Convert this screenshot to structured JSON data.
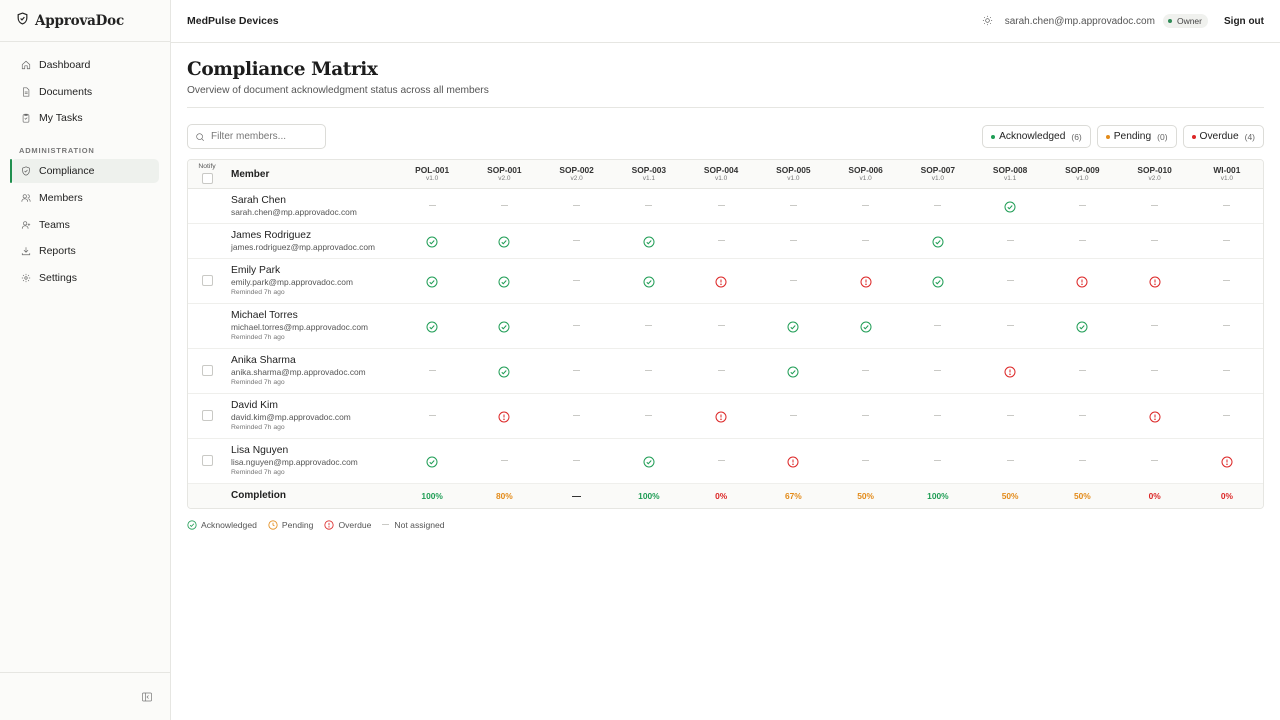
{
  "sidebar": {
    "brand": "ApprovaDoc",
    "nav": [
      {
        "label": "Dashboard",
        "icon": "home-icon"
      },
      {
        "label": "Documents",
        "icon": "document-icon"
      },
      {
        "label": "My Tasks",
        "icon": "clipboard-icon"
      }
    ],
    "admin_label": "ADMINISTRATION",
    "admin_nav": [
      {
        "label": "Compliance",
        "icon": "shield-check-icon",
        "active": true
      },
      {
        "label": "Members",
        "icon": "users-icon"
      },
      {
        "label": "Teams",
        "icon": "team-icon"
      },
      {
        "label": "Reports",
        "icon": "download-icon"
      },
      {
        "label": "Settings",
        "icon": "gear-icon"
      }
    ]
  },
  "header": {
    "org": "MedPulse Devices",
    "user_email": "sarah.chen@mp.approvadoc.com",
    "role": "Owner",
    "signout": "Sign out"
  },
  "page": {
    "title": "Compliance Matrix",
    "subtitle": "Overview of document acknowledgment status across all members"
  },
  "search": {
    "placeholder": "Filter members...",
    "value": ""
  },
  "filters": [
    {
      "label": "Acknowledged",
      "count": "(6)",
      "color": "#1f9d55"
    },
    {
      "label": "Pending",
      "count": "(0)",
      "color": "#e38b1a"
    },
    {
      "label": "Overdue",
      "count": "(4)",
      "color": "#dc2626"
    }
  ],
  "table": {
    "notify_header": "Notify",
    "member_header": "Member",
    "documents": [
      {
        "id": "POL-001",
        "version": "v1.0"
      },
      {
        "id": "SOP-001",
        "version": "v2.0"
      },
      {
        "id": "SOP-002",
        "version": "v2.0"
      },
      {
        "id": "SOP-003",
        "version": "v1.1"
      },
      {
        "id": "SOP-004",
        "version": "v1.0"
      },
      {
        "id": "SOP-005",
        "version": "v1.0"
      },
      {
        "id": "SOP-006",
        "version": "v1.0"
      },
      {
        "id": "SOP-007",
        "version": "v1.0"
      },
      {
        "id": "SOP-008",
        "version": "v1.1"
      },
      {
        "id": "SOP-009",
        "version": "v1.0"
      },
      {
        "id": "SOP-010",
        "version": "v2.0"
      },
      {
        "id": "WI-001",
        "version": "v1.0"
      }
    ],
    "members": [
      {
        "name": "Sarah Chen",
        "email": "sarah.chen@mp.approvadoc.com",
        "reminded": "",
        "notify_checkbox": false,
        "statuses": [
          "na",
          "na",
          "na",
          "na",
          "na",
          "na",
          "na",
          "na",
          "ack",
          "na",
          "na",
          "na"
        ]
      },
      {
        "name": "James Rodriguez",
        "email": "james.rodriguez@mp.approvadoc.com",
        "reminded": "",
        "notify_checkbox": false,
        "statuses": [
          "ack",
          "ack",
          "na",
          "ack",
          "na",
          "na",
          "na",
          "ack",
          "na",
          "na",
          "na",
          "na"
        ]
      },
      {
        "name": "Emily Park",
        "email": "emily.park@mp.approvadoc.com",
        "reminded": "Reminded 7h ago",
        "notify_checkbox": true,
        "statuses": [
          "ack",
          "ack",
          "na",
          "ack",
          "overdue",
          "na",
          "overdue",
          "ack",
          "na",
          "overdue",
          "overdue",
          "na"
        ]
      },
      {
        "name": "Michael Torres",
        "email": "michael.torres@mp.approvadoc.com",
        "reminded": "Reminded 7h ago",
        "notify_checkbox": false,
        "statuses": [
          "ack",
          "ack",
          "na",
          "na",
          "na",
          "ack",
          "ack",
          "na",
          "na",
          "ack",
          "na",
          "na"
        ]
      },
      {
        "name": "Anika Sharma",
        "email": "anika.sharma@mp.approvadoc.com",
        "reminded": "Reminded 7h ago",
        "notify_checkbox": true,
        "statuses": [
          "na",
          "ack",
          "na",
          "na",
          "na",
          "ack",
          "na",
          "na",
          "overdue",
          "na",
          "na",
          "na"
        ]
      },
      {
        "name": "David Kim",
        "email": "david.kim@mp.approvadoc.com",
        "reminded": "Reminded 7h ago",
        "notify_checkbox": true,
        "statuses": [
          "na",
          "overdue",
          "na",
          "na",
          "overdue",
          "na",
          "na",
          "na",
          "na",
          "na",
          "overdue",
          "na"
        ]
      },
      {
        "name": "Lisa Nguyen",
        "email": "lisa.nguyen@mp.approvadoc.com",
        "reminded": "Reminded 7h ago",
        "notify_checkbox": true,
        "statuses": [
          "ack",
          "na",
          "na",
          "ack",
          "na",
          "overdue",
          "na",
          "na",
          "na",
          "na",
          "na",
          "overdue"
        ]
      }
    ],
    "completion_label": "Completion",
    "completion": [
      {
        "value": "100%",
        "color": "#1f9d55"
      },
      {
        "value": "80%",
        "color": "#e38b1a"
      },
      {
        "value": "",
        "color": "#333333"
      },
      {
        "value": "100%",
        "color": "#1f9d55"
      },
      {
        "value": "0%",
        "color": "#dc2626"
      },
      {
        "value": "67%",
        "color": "#e38b1a"
      },
      {
        "value": "50%",
        "color": "#e38b1a"
      },
      {
        "value": "100%",
        "color": "#1f9d55"
      },
      {
        "value": "50%",
        "color": "#e38b1a"
      },
      {
        "value": "50%",
        "color": "#e38b1a"
      },
      {
        "value": "0%",
        "color": "#dc2626"
      },
      {
        "value": "0%",
        "color": "#dc2626"
      }
    ]
  },
  "legend": [
    {
      "label": "Acknowledged",
      "icon": "check-circle-icon"
    },
    {
      "label": "Pending",
      "icon": "clock-icon"
    },
    {
      "label": "Overdue",
      "icon": "alert-circle-icon"
    },
    {
      "label": "Not assigned",
      "icon": "dash-icon"
    }
  ],
  "colors": {
    "ack": "#1f9d55",
    "pending": "#e38b1a",
    "overdue": "#dc2626"
  }
}
